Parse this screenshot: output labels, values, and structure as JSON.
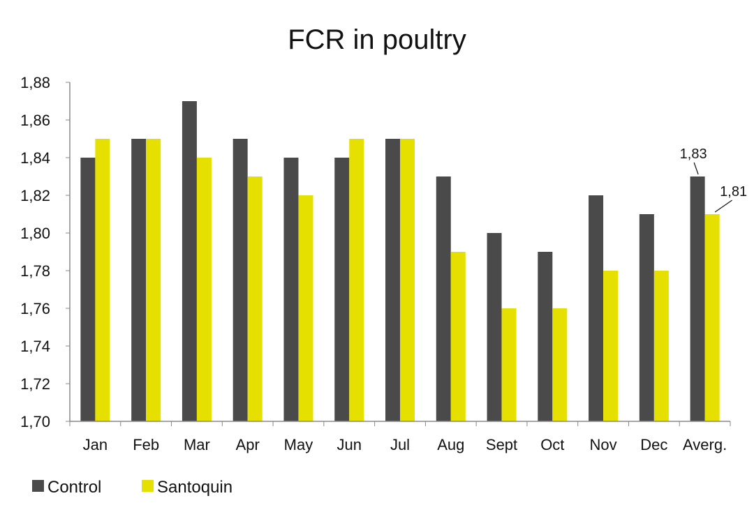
{
  "chart_data": {
    "type": "bar",
    "title": "FCR in poultry",
    "xlabel": "",
    "ylabel": "",
    "categories": [
      "Jan",
      "Feb",
      "Mar",
      "Apr",
      "May",
      "Jun",
      "Jul",
      "Aug",
      "Sept",
      "Oct",
      "Nov",
      "Dec",
      "Averg."
    ],
    "series": [
      {
        "name": "Control",
        "color": "#4a4a4a",
        "values": [
          1.84,
          1.85,
          1.87,
          1.85,
          1.84,
          1.84,
          1.85,
          1.83,
          1.8,
          1.79,
          1.82,
          1.81,
          1.83
        ]
      },
      {
        "name": "Santoquin",
        "color": "#e6e000",
        "values": [
          1.85,
          1.85,
          1.84,
          1.83,
          1.82,
          1.85,
          1.85,
          1.79,
          1.76,
          1.76,
          1.78,
          1.78,
          1.81
        ]
      }
    ],
    "ylim": [
      1.7,
      1.88
    ],
    "yticks": [
      "1,70",
      "1,72",
      "1,74",
      "1,76",
      "1,78",
      "1,80",
      "1,82",
      "1,84",
      "1,86",
      "1,88"
    ],
    "grid": false,
    "legend": "bottom-left",
    "annotations": [
      {
        "text": "1,83",
        "series": "Control",
        "category": "Averg."
      },
      {
        "text": "1,81",
        "series": "Santoquin",
        "category": "Averg."
      }
    ]
  }
}
